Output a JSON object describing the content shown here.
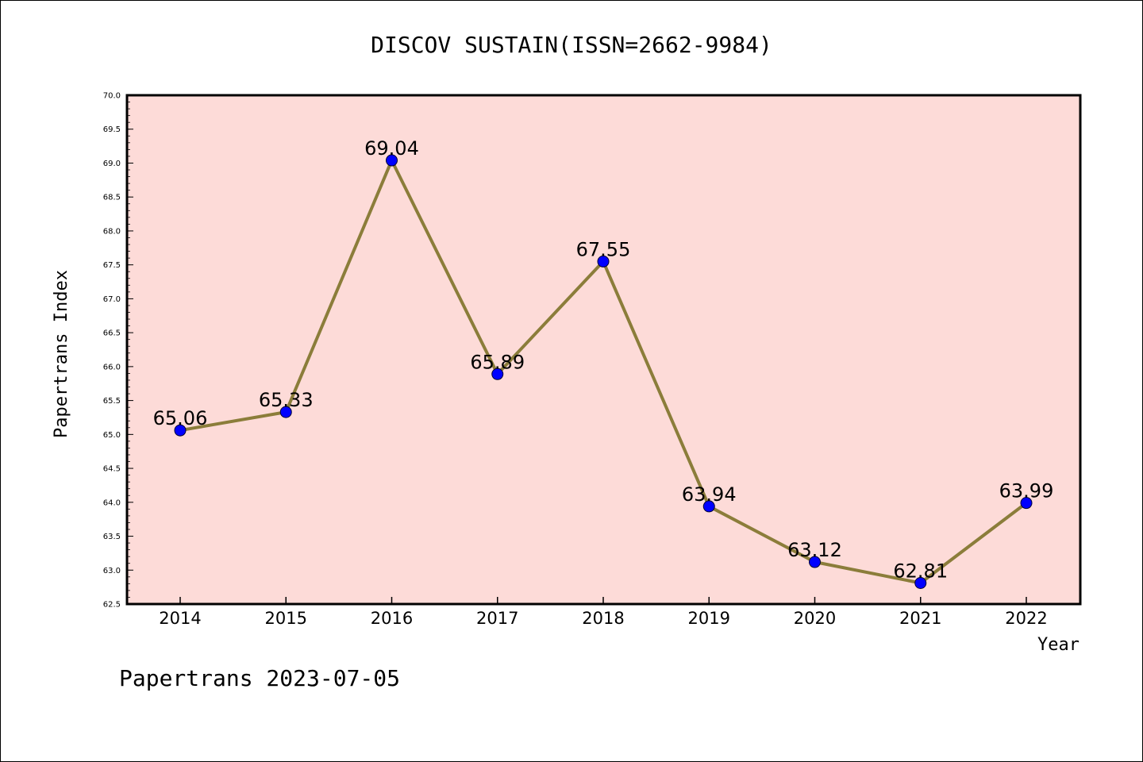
{
  "chart_data": {
    "type": "line",
    "title": "DISCOV SUSTAIN(ISSN=2662-9984)",
    "xlabel": "Year",
    "ylabel": "Papertrans Index",
    "categories": [
      "2014",
      "2015",
      "2016",
      "2017",
      "2018",
      "2019",
      "2020",
      "2021",
      "2022"
    ],
    "values": [
      65.06,
      65.33,
      69.04,
      65.89,
      67.55,
      63.94,
      63.12,
      62.81,
      63.99
    ],
    "data_labels": [
      "65.06",
      "65.33",
      "69.04",
      "65.89",
      "67.55",
      "63.94",
      "63.12",
      "62.81",
      "63.99"
    ],
    "ylim": [
      62.5,
      70.0
    ],
    "yticks": [
      "62.5",
      "63.0",
      "63.5",
      "64.0",
      "64.5",
      "65.0",
      "65.5",
      "66.0",
      "66.5",
      "67.0",
      "67.5",
      "68.0",
      "68.5",
      "69.0",
      "69.5",
      "70.0"
    ],
    "grid": false,
    "legend": "none",
    "colors": {
      "plot_background": "#fddbd8",
      "line": "#8b7d3a",
      "marker": "#0000ff"
    }
  },
  "footer": "Papertrans 2023-07-05"
}
